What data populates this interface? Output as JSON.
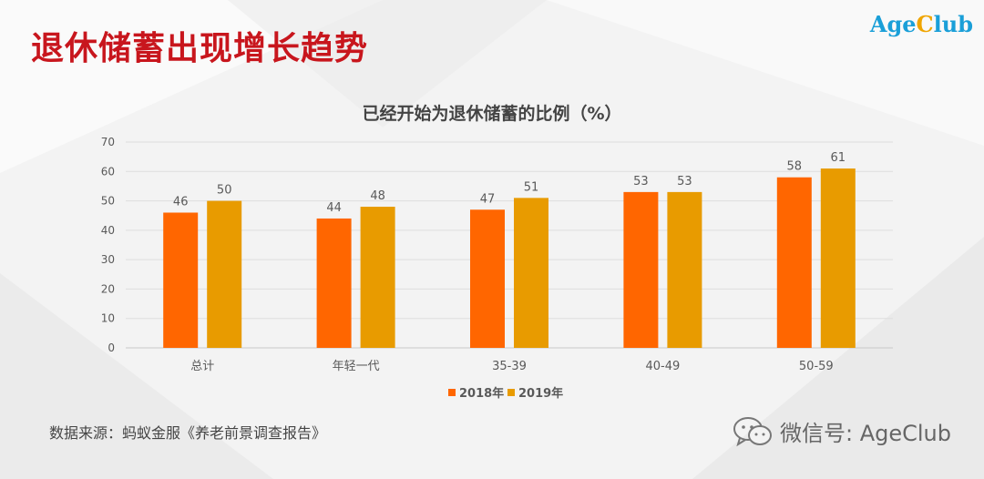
{
  "header": {
    "title": "退休储蓄出现增长趋势",
    "logo_part1": "Age",
    "logo_part2": "C",
    "logo_part3": "lub"
  },
  "chart_data": {
    "type": "bar",
    "title": "已经开始为退休储蓄的比例（%）",
    "categories": [
      "总计",
      "年轻一代",
      "35-39",
      "40-49",
      "50-59"
    ],
    "series": [
      {
        "name": "2018年",
        "values": [
          46,
          44,
          47,
          53,
          58
        ],
        "color": "#ff6600"
      },
      {
        "name": "2019年",
        "values": [
          50,
          48,
          51,
          53,
          61
        ],
        "color": "#e89b00"
      }
    ],
    "ylim": [
      0,
      70
    ],
    "yticks": [
      0,
      10,
      20,
      30,
      40,
      50,
      60,
      70
    ],
    "xlabel": "",
    "ylabel": "",
    "legend_position": "bottom",
    "grid": true
  },
  "footer": {
    "source": "数据来源：蚂蚁金服《养老前景调查报告》",
    "watermark": "微信号: AgeClub"
  }
}
